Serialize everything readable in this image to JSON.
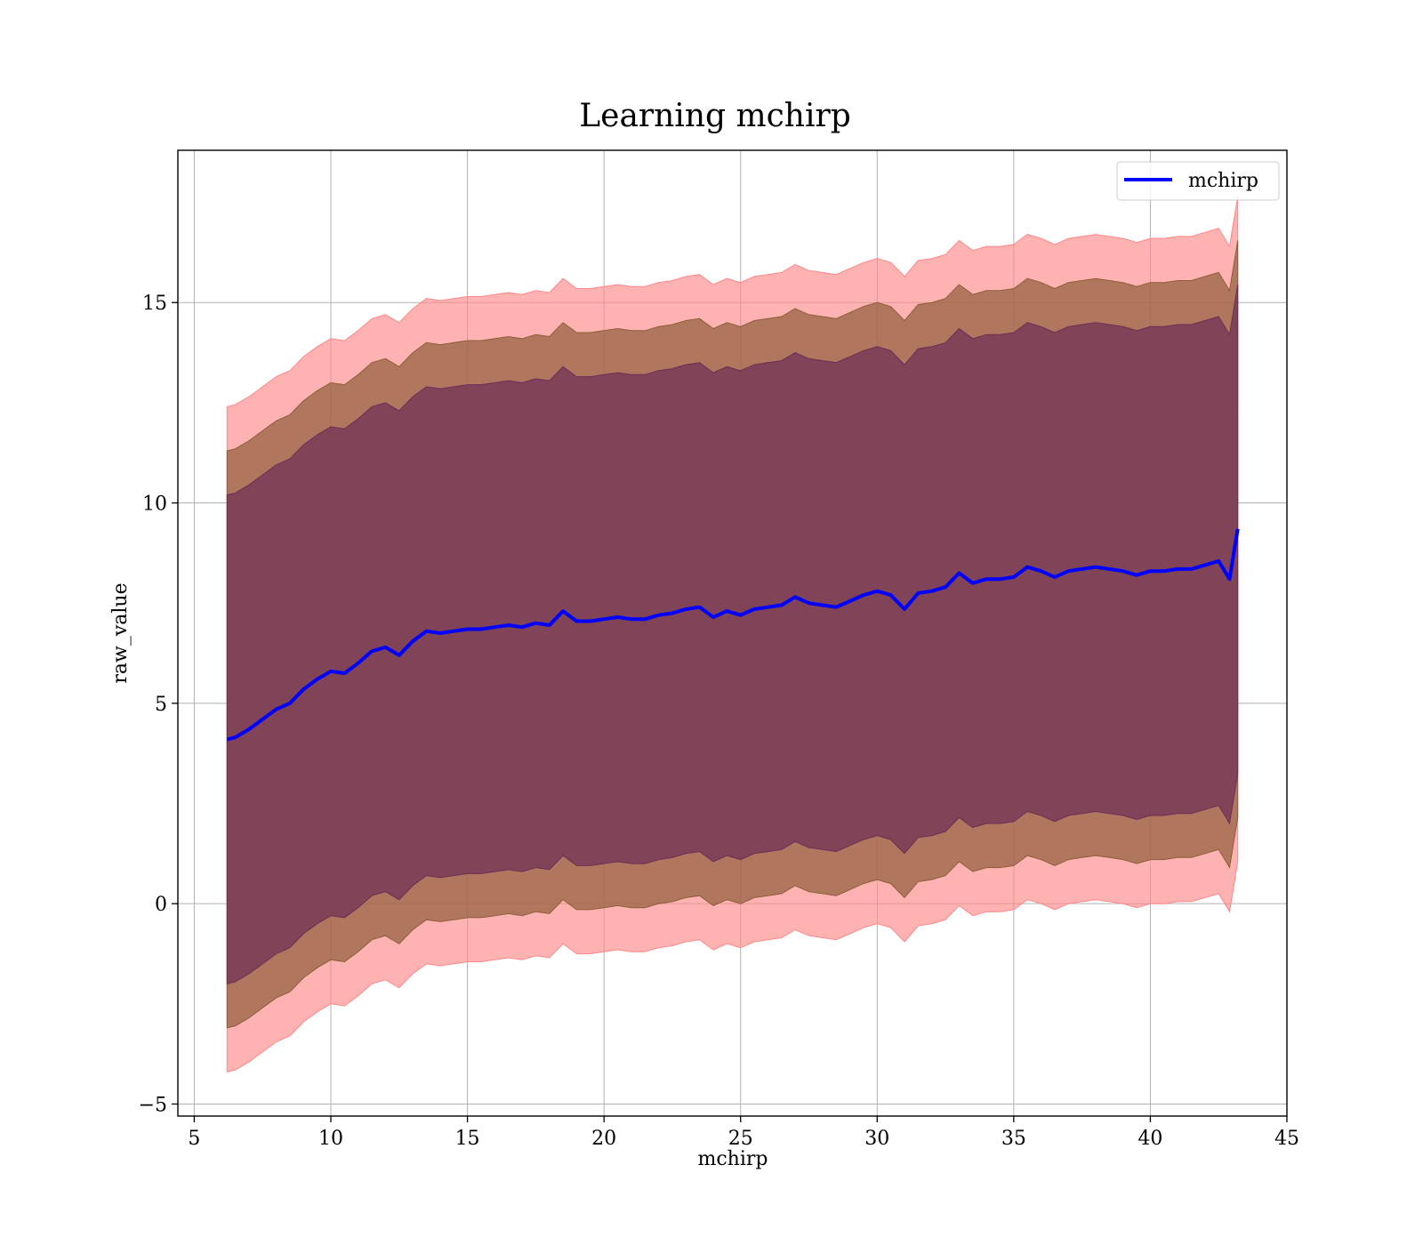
{
  "chart_data": {
    "type": "area",
    "title": "Learning mchirp",
    "xlabel": "mchirp",
    "ylabel": "raw_value",
    "xlim": [
      4.4,
      45
    ],
    "ylim": [
      -5.3,
      18.8
    ],
    "xticks": [
      5,
      10,
      15,
      20,
      25,
      30,
      35,
      40,
      45
    ],
    "yticks": [
      -5,
      0,
      5,
      10,
      15
    ],
    "ytick_labels": [
      "−5",
      "0",
      "5",
      "10",
      "15"
    ],
    "grid": true,
    "legend": {
      "placement": "top-right",
      "entries": [
        "mchirp"
      ]
    },
    "colors": {
      "line": "#0000ff",
      "band_3sigma": "#ff8888",
      "band_2sigma": "#8e5e3a",
      "band_1sigma": "#6e2d55",
      "grid": "#b0b0b0"
    },
    "x": [
      6.2,
      6.5,
      7.0,
      7.5,
      8.0,
      8.5,
      9.0,
      9.5,
      10.0,
      10.5,
      11.0,
      11.5,
      12.0,
      12.5,
      13.0,
      13.5,
      14.0,
      14.5,
      15.0,
      15.5,
      16.0,
      16.5,
      17.0,
      17.5,
      18.0,
      18.5,
      19.0,
      19.5,
      20.0,
      20.5,
      21.0,
      21.5,
      22.0,
      22.5,
      23.0,
      23.5,
      24.0,
      24.5,
      25.0,
      25.5,
      26.0,
      26.5,
      27.0,
      27.5,
      28.0,
      28.5,
      29.0,
      29.5,
      30.0,
      30.5,
      31.0,
      31.5,
      32.0,
      32.5,
      33.0,
      33.5,
      34.0,
      34.5,
      35.0,
      35.5,
      36.0,
      36.5,
      37.0,
      37.5,
      38.0,
      38.5,
      39.0,
      39.5,
      40.0,
      40.5,
      41.0,
      41.5,
      42.0,
      42.5,
      42.9,
      43.2
    ],
    "series": [
      {
        "name": "mchirp",
        "values": [
          4.1,
          4.15,
          4.35,
          4.6,
          4.85,
          5.0,
          5.35,
          5.6,
          5.8,
          5.75,
          6.0,
          6.3,
          6.4,
          6.2,
          6.55,
          6.8,
          6.75,
          6.8,
          6.85,
          6.85,
          6.9,
          6.95,
          6.9,
          7.0,
          6.95,
          7.3,
          7.05,
          7.05,
          7.1,
          7.15,
          7.1,
          7.1,
          7.2,
          7.25,
          7.35,
          7.4,
          7.15,
          7.3,
          7.2,
          7.35,
          7.4,
          7.45,
          7.65,
          7.5,
          7.45,
          7.4,
          7.55,
          7.7,
          7.8,
          7.7,
          7.35,
          7.75,
          7.8,
          7.9,
          8.25,
          8.0,
          8.1,
          8.1,
          8.15,
          8.4,
          8.3,
          8.15,
          8.3,
          8.35,
          8.4,
          8.35,
          8.3,
          8.2,
          8.3,
          8.3,
          8.35,
          8.35,
          8.45,
          8.55,
          8.1,
          9.35
        ]
      }
    ],
    "bands_offset_from_series": [
      6.1,
      7.2,
      8.3
    ]
  }
}
